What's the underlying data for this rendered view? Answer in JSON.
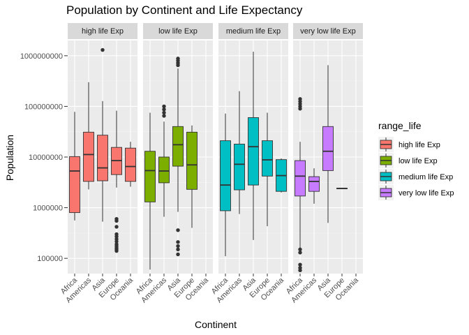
{
  "chart_data": {
    "type": "boxplot",
    "title": "Population by Continent and Life Expectancy",
    "xlabel": "Continent",
    "ylabel": "Population",
    "y_scale": "log10",
    "ylim": [
      50000,
      2000000000
    ],
    "y_ticks": [
      100000,
      1000000,
      10000000,
      100000000,
      1000000000
    ],
    "y_tick_labels": [
      "100000",
      "1000000",
      "10000000",
      "100000000",
      "1000000000"
    ],
    "categories": [
      "Africa",
      "Americas",
      "Asia",
      "Europe",
      "Oceania"
    ],
    "legend": {
      "title": "range_life",
      "position": "right"
    },
    "series": [
      {
        "name": "high life Exp",
        "color": "#F8766D",
        "boxes": [
          {
            "category": "Africa",
            "min": 560000,
            "q1": 800000,
            "median": 5300000,
            "q3": 10200000,
            "max": 78000000,
            "outliers": []
          },
          {
            "category": "Americas",
            "min": 2300000,
            "q1": 3300000,
            "median": 11200000,
            "q3": 31000000,
            "max": 300000000,
            "outliers": []
          },
          {
            "category": "Asia",
            "min": 530000,
            "q1": 3400000,
            "median": 6100000,
            "q3": 27000000,
            "max": 127000000,
            "outliers": [
              1300000000
            ]
          },
          {
            "category": "Europe",
            "min": 2500000,
            "q1": 4500000,
            "median": 8500000,
            "q3": 15500000,
            "max": 82000000,
            "outliers": [
              600000,
              550000,
              420000,
              300000,
              270000,
              240000,
              215000,
              190000,
              175000,
              160000,
              150000,
              140000
            ]
          },
          {
            "category": "Oceania",
            "min": 2600000,
            "q1": 3300000,
            "median": 6500000,
            "q3": 15000000,
            "max": 20000000,
            "outliers": []
          }
        ]
      },
      {
        "name": "low life Exp",
        "color": "#7CAE00",
        "boxes": [
          {
            "category": "Africa",
            "min": 60000,
            "q1": 1300000,
            "median": 5400000,
            "q3": 13000000,
            "max": 75000000,
            "outliers": []
          },
          {
            "category": "Americas",
            "min": 660000,
            "q1": 3100000,
            "median": 5300000,
            "q3": 10000000,
            "max": 50000000,
            "outliers": [
              65000000,
              75000000,
              87000000,
              100000000
            ]
          },
          {
            "category": "Asia",
            "min": 830000,
            "q1": 6600000,
            "median": 17500000,
            "q3": 40000000,
            "max": 560000000,
            "outliers": [
              650000000,
              720000000,
              800000000,
              880000000,
              360000,
              210000,
              175000,
              150000,
              120000
            ]
          },
          {
            "category": "Europe",
            "min": 400000,
            "q1": 2300000,
            "median": 7000000,
            "q3": 31000000,
            "max": 42000000,
            "outliers": []
          }
        ]
      },
      {
        "name": "medium life Exp",
        "color": "#00BFC4",
        "boxes": [
          {
            "category": "Africa",
            "min": 110000,
            "q1": 870000,
            "median": 2800000,
            "q3": 21000000,
            "max": 72000000,
            "outliers": []
          },
          {
            "category": "Americas",
            "min": 750000,
            "q1": 2250000,
            "median": 7200000,
            "q3": 18000000,
            "max": 200000000,
            "outliers": []
          },
          {
            "category": "Asia",
            "min": 230000,
            "q1": 2800000,
            "median": 16000000,
            "q3": 60000000,
            "max": 1200000000,
            "outliers": []
          },
          {
            "category": "Europe",
            "min": 430000,
            "q1": 4200000,
            "median": 8800000,
            "q3": 21000000,
            "max": 75000000,
            "outliers": []
          },
          {
            "category": "Oceania",
            "min": 2000000,
            "q1": 2100000,
            "median": 4300000,
            "q3": 8900000,
            "max": 9400000,
            "outliers": []
          }
        ]
      },
      {
        "name": "very low life Exp",
        "color": "#C77CFF",
        "boxes": [
          {
            "category": "Africa",
            "min": 130000,
            "q1": 1700000,
            "median": 4200000,
            "q3": 8500000,
            "max": 20000000,
            "outliers": [
              140000000,
              125000000,
              112000000,
              100000000,
              90000000,
              150000,
              130000,
              75000,
              65000,
              58000
            ]
          },
          {
            "category": "Americas",
            "min": 1200000,
            "q1": 2100000,
            "median": 3300000,
            "q3": 4100000,
            "max": 6000000,
            "outliers": []
          },
          {
            "category": "Asia",
            "min": 500000,
            "q1": 5400000,
            "median": 13000000,
            "q3": 40000000,
            "max": 650000000,
            "outliers": []
          },
          {
            "category": "Europe",
            "min": 2370000,
            "q1": 2370000,
            "median": 2400000,
            "q3": 2430000,
            "max": 2430000,
            "outliers": []
          }
        ]
      }
    ]
  }
}
